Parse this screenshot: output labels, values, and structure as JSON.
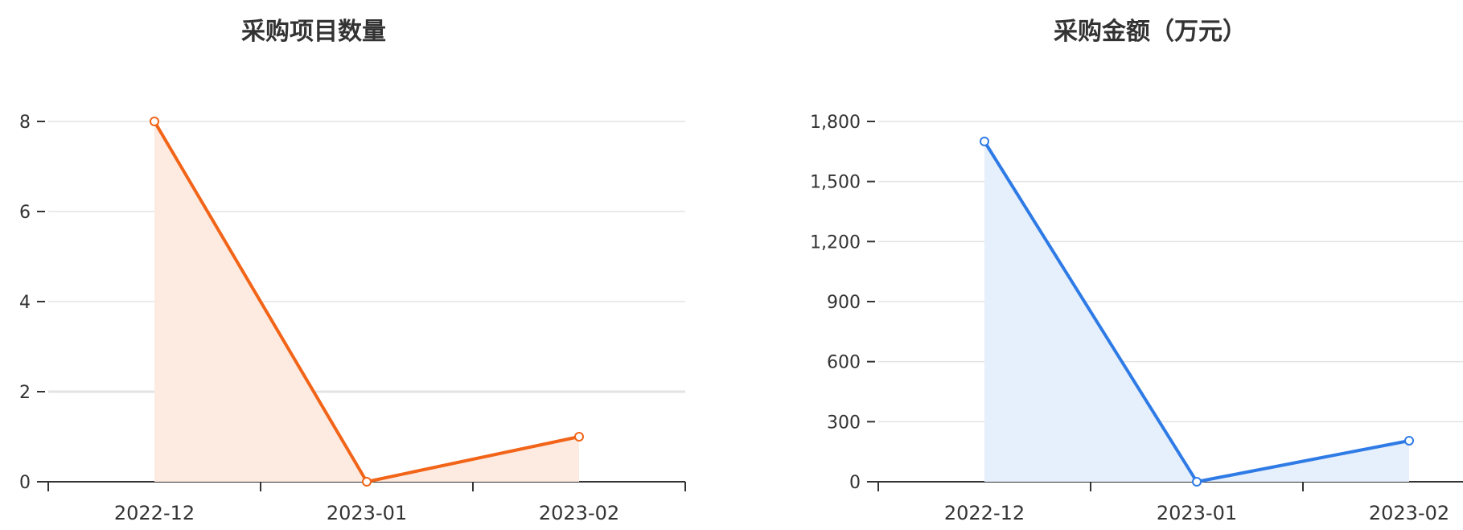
{
  "chart_data": [
    {
      "type": "area",
      "title": "采购项目数量",
      "categories": [
        "2022-12",
        "2023-01",
        "2023-02"
      ],
      "values": [
        8,
        0,
        1
      ],
      "ylim": [
        0,
        8
      ],
      "yticks": [
        "0",
        "2",
        "4",
        "6",
        "8"
      ],
      "ytick_values": [
        0,
        2,
        4,
        6,
        8
      ],
      "grid": true,
      "colors": {
        "line": "#f26418",
        "fill": "#fdeae0"
      }
    },
    {
      "type": "area",
      "title": "采购金额（万元）",
      "categories": [
        "2022-12",
        "2023-01",
        "2023-02"
      ],
      "values": [
        1700,
        0,
        205
      ],
      "ylim": [
        0,
        1800
      ],
      "yticks": [
        "0",
        "300",
        "600",
        "900",
        "1,200",
        "1,500",
        "1,800"
      ],
      "ytick_values": [
        0,
        300,
        600,
        900,
        1200,
        1500,
        1800
      ],
      "grid": true,
      "colors": {
        "line": "#2f7be6",
        "fill": "#e6effc"
      }
    }
  ]
}
